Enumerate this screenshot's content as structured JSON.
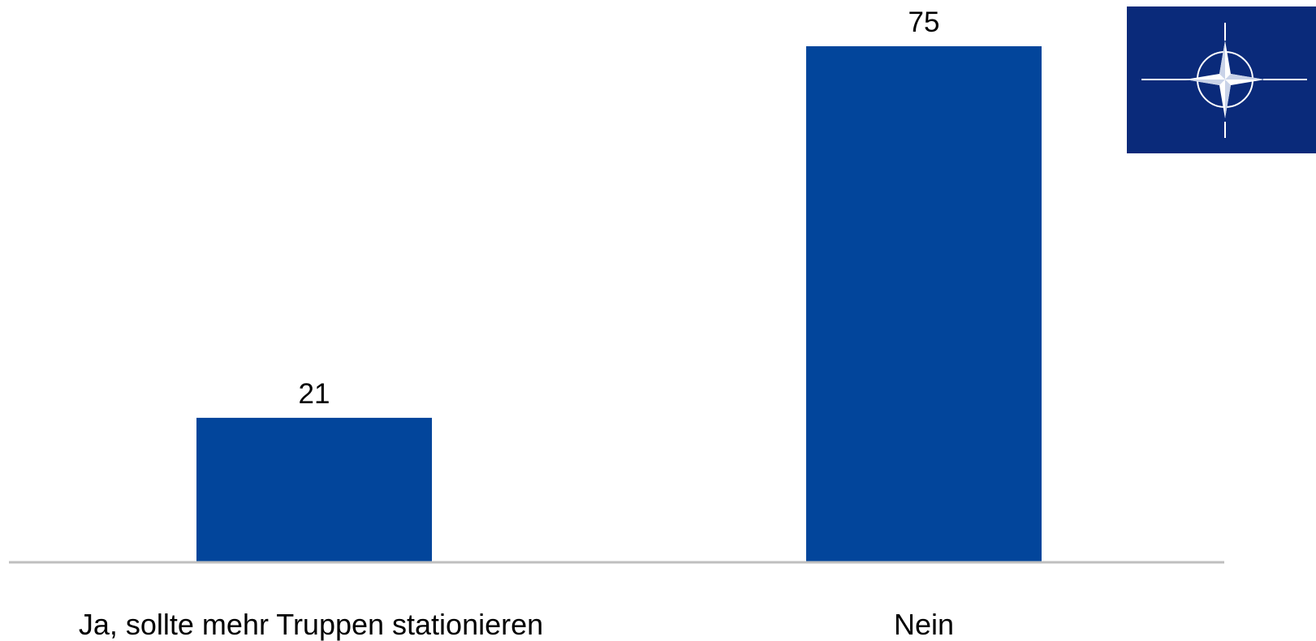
{
  "chart_data": {
    "type": "bar",
    "categories": [
      "Ja, sollte mehr Truppen stationieren",
      "Nein"
    ],
    "values": [
      21,
      75
    ],
    "title": "",
    "xlabel": "",
    "ylabel": "",
    "ylim": [
      0,
      75
    ],
    "grid": false,
    "legend": "none",
    "data_labels": true
  },
  "colors": {
    "bar": "#02459B",
    "axis": "#BFBFBF",
    "logo_background": "#0A2A7A",
    "logo_foreground": "#FFFFFF"
  },
  "logo": {
    "icon": "nato-compass-rose-icon"
  }
}
